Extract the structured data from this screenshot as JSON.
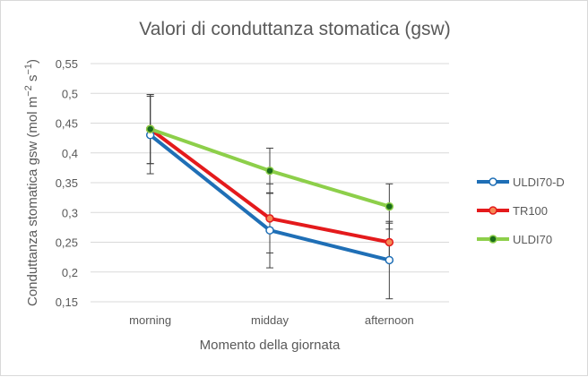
{
  "chart_data": {
    "type": "line",
    "title": "Valori di conduttanza stomatica (gsw)",
    "xlabel": "Momento della giornata",
    "ylabel": "Conduttanza stomatica gsw (mol m",
    "ylabel_sup1": "−2",
    "ylabel_mid": " s",
    "ylabel_sup2": "−1",
    "ylabel_end": ")",
    "categories": [
      "morning",
      "midday",
      "afternoon"
    ],
    "ylim": [
      0.15,
      0.55
    ],
    "yticks": [
      "0,15",
      "0,2",
      "0,25",
      "0,3",
      "0,35",
      "0,4",
      "0,45",
      "0,5",
      "0,55"
    ],
    "ytick_values": [
      0.15,
      0.2,
      0.25,
      0.3,
      0.35,
      0.4,
      0.45,
      0.5,
      0.55
    ],
    "grid": true,
    "legend_position": "right",
    "series": [
      {
        "name": "ULDI70-D",
        "color": "#1f6fb6",
        "marker_fill": "#ffffff",
        "values": [
          0.43,
          0.27,
          0.22
        ],
        "errors": [
          0.065,
          0.063,
          0.065
        ]
      },
      {
        "name": "TR100",
        "color": "#e41a1c",
        "marker_fill": "#f58a55",
        "values": [
          0.44,
          0.29,
          0.25
        ],
        "errors": [
          0.058,
          0.058,
          0.032
        ]
      },
      {
        "name": "ULDI70",
        "color": "#8dcf4a",
        "marker_fill": "#1a6b1a",
        "values": [
          0.44,
          0.37,
          0.31
        ],
        "errors": [
          0.058,
          0.038,
          0.038
        ]
      }
    ]
  }
}
